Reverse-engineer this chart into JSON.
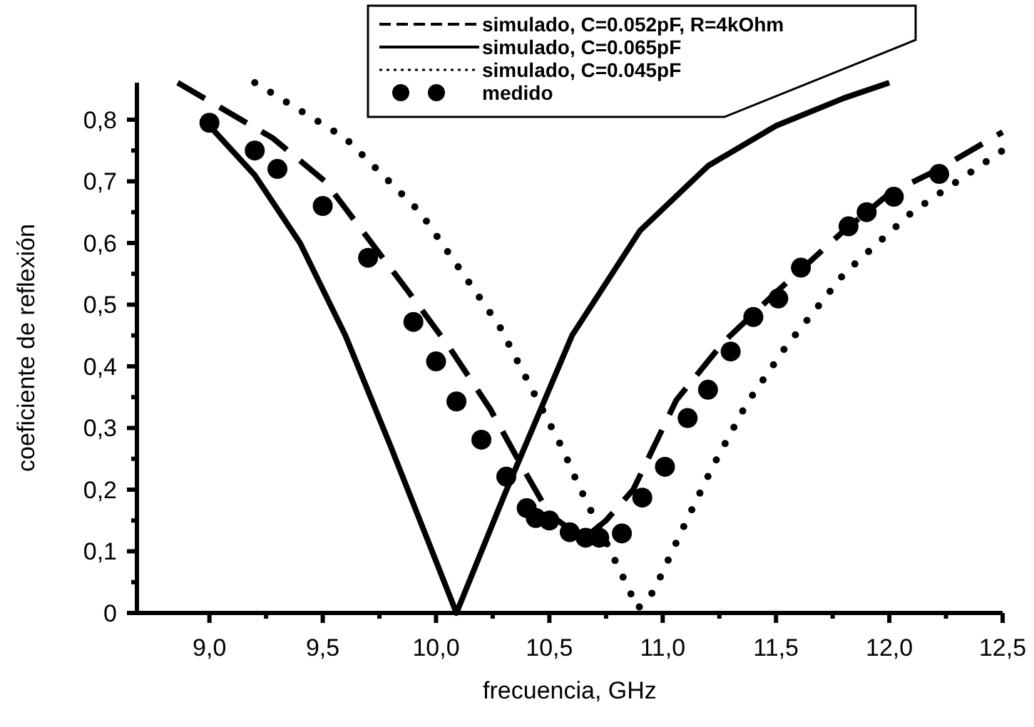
{
  "chart_data": {
    "type": "line",
    "xlabel": "frecuencia, GHz",
    "ylabel": "coeficiente de reflexión",
    "xlim": [
      8.68,
      12.5
    ],
    "ylim": [
      0,
      0.86
    ],
    "xticks": [
      {
        "value": 9,
        "label": "9,0"
      },
      {
        "value": 9.25,
        "label": null
      },
      {
        "value": 9.5,
        "label": "9,5"
      },
      {
        "value": 9.75,
        "label": null
      },
      {
        "value": 10,
        "label": "10,0"
      },
      {
        "value": 10.25,
        "label": null
      },
      {
        "value": 10.5,
        "label": "10,5"
      },
      {
        "value": 10.75,
        "label": null
      },
      {
        "value": 11,
        "label": "11,0"
      },
      {
        "value": 11.25,
        "label": null
      },
      {
        "value": 11.5,
        "label": "11,5"
      },
      {
        "value": 11.75,
        "label": null
      },
      {
        "value": 12,
        "label": "12,0"
      },
      {
        "value": 12.25,
        "label": null
      },
      {
        "value": 12.5,
        "label": "12,5"
      }
    ],
    "yticks": [
      0,
      {
        "value": 0.05,
        "label": null
      },
      {
        "value": 0.1,
        "label": "0,1"
      },
      {
        "value": 0.15,
        "label": null
      },
      {
        "value": 0.2,
        "label": "0,2"
      },
      {
        "value": 0.25,
        "label": null
      },
      {
        "value": 0.3,
        "label": "0,3"
      },
      {
        "value": 0.35,
        "label": null
      },
      {
        "value": 0.4,
        "label": "0,4"
      },
      {
        "value": 0.45,
        "label": null
      },
      {
        "value": 0.5,
        "label": "0,5"
      },
      {
        "value": 0.55,
        "label": null
      },
      {
        "value": 0.6,
        "label": "0,6"
      },
      {
        "value": 0.65,
        "label": null
      },
      {
        "value": 0.7,
        "label": "0,7"
      },
      {
        "value": 0.75,
        "label": null
      },
      {
        "value": 0.8,
        "label": "0,8"
      }
    ],
    "grid": false,
    "legend": "top right",
    "series": [
      {
        "name": "simulado, C=0.052pF, R=4kOhm",
        "color": "#000000",
        "line_style": "dashed",
        "marker": "none",
        "x": [
          8.86,
          9.28,
          9.51,
          9.88,
          10.06,
          10.24,
          10.36,
          10.5,
          10.65,
          10.75,
          10.87,
          11.06,
          11.27,
          11.5,
          11.8,
          12.0,
          12.22,
          12.5
        ],
        "values": [
          0.86,
          0.77,
          0.7,
          0.52,
          0.43,
          0.33,
          0.25,
          0.16,
          0.12,
          0.15,
          0.2,
          0.345,
          0.44,
          0.52,
          0.62,
          0.68,
          0.72,
          0.78
        ]
      },
      {
        "name": "simulado, C=0.065pF",
        "color": "#000000",
        "line_style": "solid",
        "marker": "none",
        "x": [
          9.0,
          9.2,
          9.4,
          9.6,
          9.8,
          10.09,
          10.3,
          10.6,
          10.9,
          11.2,
          11.5,
          11.8,
          12.0
        ],
        "values": [
          0.79,
          0.71,
          0.6,
          0.45,
          0.27,
          0.0,
          0.19,
          0.45,
          0.62,
          0.725,
          0.79,
          0.835,
          0.86
        ]
      },
      {
        "name": "simulado, C=0.045pF",
        "color": "#000000",
        "line_style": "dotted",
        "marker": "none",
        "x": [
          9.2,
          9.6,
          9.93,
          10.28,
          10.35,
          10.56,
          10.62,
          10.82,
          10.89,
          10.96,
          11.09,
          11.22,
          11.37,
          11.54,
          11.8,
          12.1,
          12.5
        ],
        "values": [
          0.86,
          0.77,
          0.65,
          0.465,
          0.415,
          0.265,
          0.214,
          0.062,
          0.007,
          0.035,
          0.138,
          0.237,
          0.339,
          0.43,
          0.55,
          0.65,
          0.75
        ]
      },
      {
        "name": "medido",
        "color": "#000000",
        "type": "scatter",
        "marker": "circle",
        "x": [
          9.0,
          9.2,
          9.3,
          9.5,
          9.7,
          9.9,
          10.0,
          10.09,
          10.2,
          10.31,
          10.4,
          10.44,
          10.5,
          10.59,
          10.66,
          10.72,
          10.82,
          10.91,
          11.01,
          11.11,
          11.2,
          11.3,
          11.4,
          11.51,
          11.61,
          11.82,
          11.9,
          12.02,
          12.22
        ],
        "values": [
          0.795,
          0.75,
          0.72,
          0.66,
          0.576,
          0.472,
          0.408,
          0.343,
          0.281,
          0.221,
          0.17,
          0.154,
          0.15,
          0.131,
          0.122,
          0.122,
          0.129,
          0.187,
          0.237,
          0.316,
          0.362,
          0.424,
          0.48,
          0.51,
          0.56,
          0.627,
          0.65,
          0.675,
          0.712
        ]
      }
    ]
  }
}
